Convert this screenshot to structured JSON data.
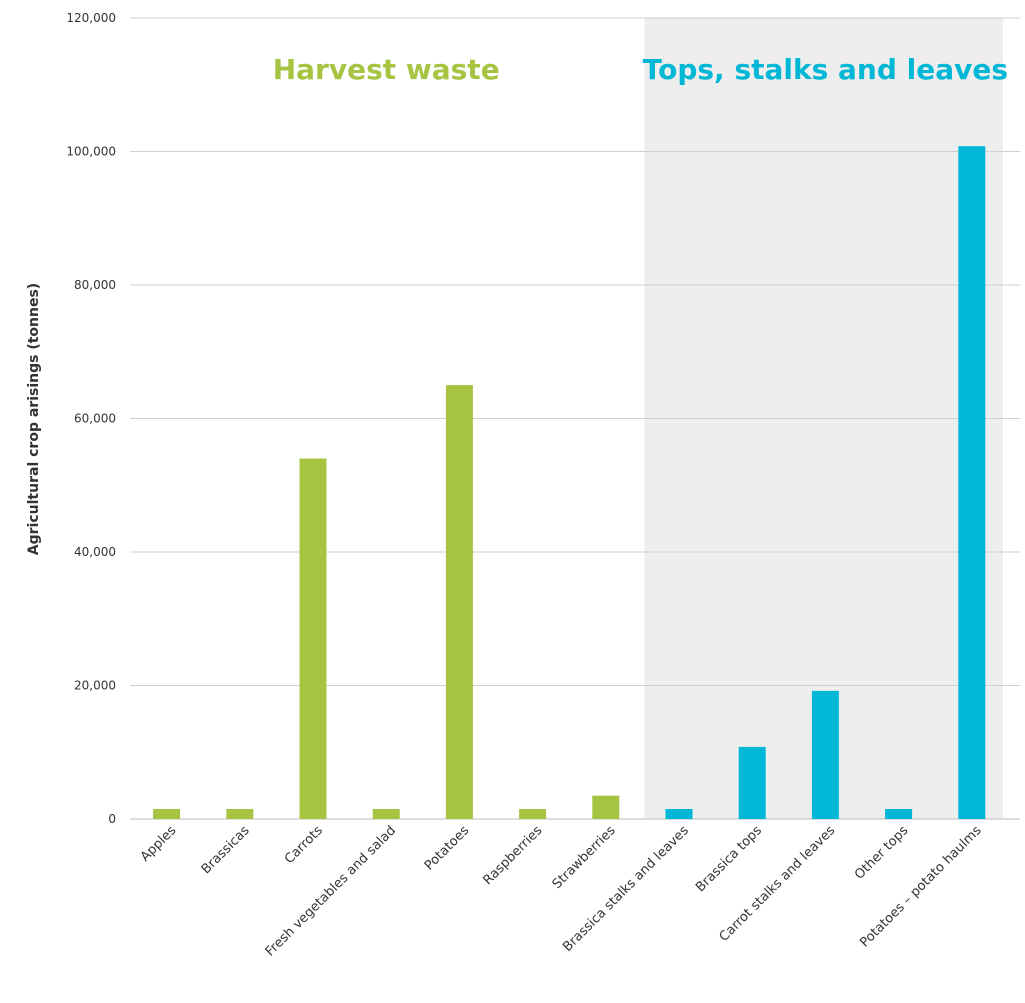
{
  "chart_data": {
    "type": "bar",
    "ylabel": "Agricultural crop arisings (tonnes)",
    "xlabel": "",
    "ylim": [
      0,
      120000
    ],
    "yticks": [
      0,
      20000,
      40000,
      60000,
      80000,
      100000,
      120000
    ],
    "ytick_labels": [
      "0",
      "20,000",
      "40,000",
      "60,000",
      "80,000",
      "100,000",
      "120,000"
    ],
    "grid": true,
    "groups": [
      {
        "name": "Harvest waste",
        "color": "#a6c441",
        "title_color": "#a6c441",
        "shaded": false,
        "categories": [
          "Apples",
          "Brassicas",
          "Carrots",
          "Fresh vegetables and salad",
          "Potatoes",
          "Raspberries",
          "Strawberries"
        ],
        "values": [
          1500,
          1500,
          54000,
          1500,
          65000,
          1500,
          3500
        ]
      },
      {
        "name": "Tops, stalks and leaves",
        "color": "#00b7d6",
        "title_color": "#00b7d6",
        "shaded": true,
        "shade_color": "#eeeeef",
        "categories": [
          "Brassica stalks and leaves",
          "Brassica tops",
          "Carrot stalks and leaves",
          "Other tops",
          "Potatoes – potato haulms"
        ],
        "values": [
          1500,
          10800,
          19200,
          1500,
          100800
        ]
      }
    ]
  }
}
